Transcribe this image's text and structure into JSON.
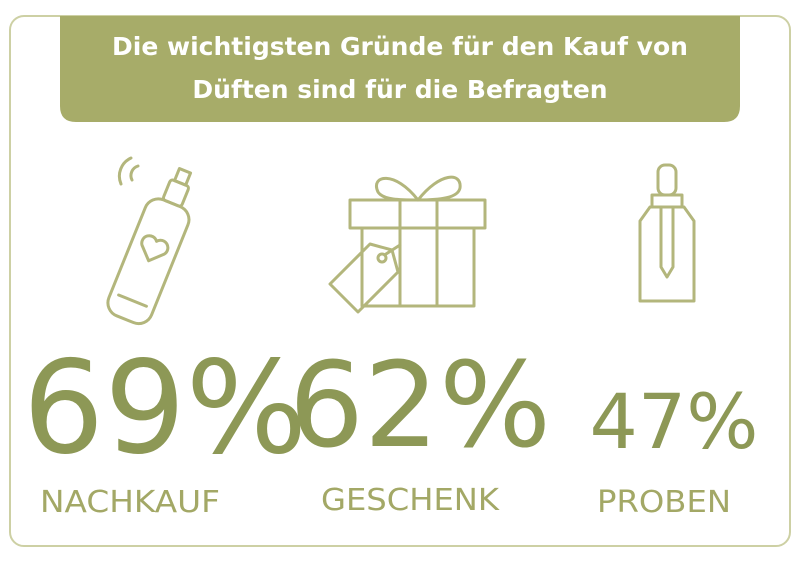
{
  "header": {
    "title_lines": [
      "Die wichtigsten Gründe für den Kauf von",
      "Düften sind für die Befragten"
    ]
  },
  "items": [
    {
      "value": "69%",
      "label": "NACHKAUF"
    },
    {
      "value": "62%",
      "label": "GESCHENK"
    },
    {
      "value": "47%",
      "label": "PROBEN"
    }
  ]
}
